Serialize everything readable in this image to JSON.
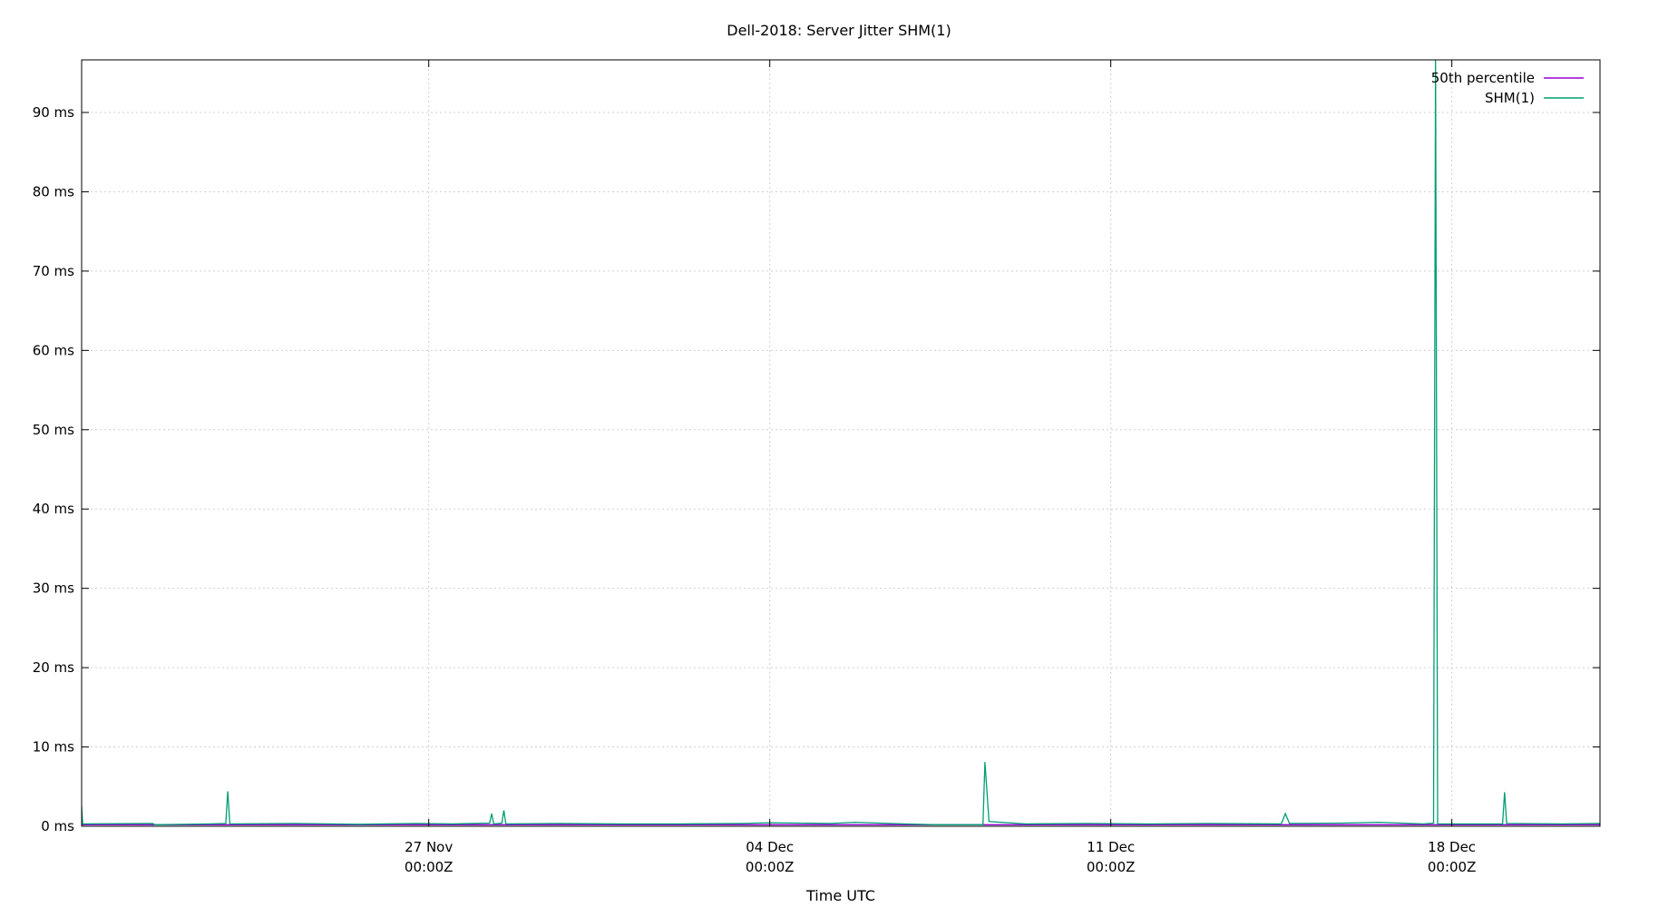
{
  "chart_data": {
    "type": "line",
    "title": "Dell-2018: Server Jitter SHM(1)",
    "xlabel": "Time UTC",
    "ylabel": "",
    "x_range": [
      "2018-11-19T21:00Z",
      "2018-12-21T01:00Z"
    ],
    "ylim": [
      0,
      90
    ],
    "y_ticks": [
      {
        "value": 0,
        "label": "0 ms"
      },
      {
        "value": 10,
        "label": "10 ms"
      },
      {
        "value": 20,
        "label": "20 ms"
      },
      {
        "value": 30,
        "label": "30 ms"
      },
      {
        "value": 40,
        "label": "40 ms"
      },
      {
        "value": 50,
        "label": "50 ms"
      },
      {
        "value": 60,
        "label": "60 ms"
      },
      {
        "value": 70,
        "label": "70 ms"
      },
      {
        "value": 80,
        "label": "80 ms"
      },
      {
        "value": 90,
        "label": "90 ms"
      }
    ],
    "x_ticks": [
      {
        "value": "2018-11-27T00:00Z",
        "line1": "27 Nov",
        "line2": "00:00Z"
      },
      {
        "value": "2018-12-04T00:00Z",
        "line1": "04 Dec",
        "line2": "00:00Z"
      },
      {
        "value": "2018-12-11T00:00Z",
        "line1": "11 Dec",
        "line2": "00:00Z"
      },
      {
        "value": "2018-12-18T00:00Z",
        "line1": "18 Dec",
        "line2": "00:00Z"
      }
    ],
    "grid": true,
    "legend_position": "top-right",
    "series": [
      {
        "name": "50th percentile",
        "color": "#9400d3",
        "points": [
          [
            "2018-11-19T21:00Z",
            0.2
          ],
          [
            "2018-12-21T01:00Z",
            0.2
          ]
        ]
      },
      {
        "name": "SHM(1)",
        "color": "#009e73",
        "points": [
          [
            "2018-11-19T21:00Z",
            2.5
          ],
          [
            "2018-11-19T21:30Z",
            0.3
          ],
          [
            "2018-11-21T08:00Z",
            0.35
          ],
          [
            "2018-11-21T09:00Z",
            0.2
          ],
          [
            "2018-11-22T12:00Z",
            0.3
          ],
          [
            "2018-11-22T20:00Z",
            0.35
          ],
          [
            "2018-11-22T21:00Z",
            4.4
          ],
          [
            "2018-11-22T22:00Z",
            0.3
          ],
          [
            "2018-11-24T06:00Z",
            0.35
          ],
          [
            "2018-11-25T14:00Z",
            0.25
          ],
          [
            "2018-11-26T18:00Z",
            0.35
          ],
          [
            "2018-11-27T12:00Z",
            0.3
          ],
          [
            "2018-11-28T06:00Z",
            0.4
          ],
          [
            "2018-11-28T07:00Z",
            1.6
          ],
          [
            "2018-11-28T08:00Z",
            0.3
          ],
          [
            "2018-11-28T12:00Z",
            0.4
          ],
          [
            "2018-11-28T13:00Z",
            2.0
          ],
          [
            "2018-11-28T14:00Z",
            0.3
          ],
          [
            "2018-11-29T16:00Z",
            0.35
          ],
          [
            "2018-11-30T22:00Z",
            0.3
          ],
          [
            "2018-12-02T04:00Z",
            0.3
          ],
          [
            "2018-12-03T10:00Z",
            0.35
          ],
          [
            "2018-12-04T00:00Z",
            0.45
          ],
          [
            "2018-12-05T06:00Z",
            0.35
          ],
          [
            "2018-12-05T18:00Z",
            0.5
          ],
          [
            "2018-12-06T18:00Z",
            0.3
          ],
          [
            "2018-12-07T10:00Z",
            0.2
          ],
          [
            "2018-12-08T09:00Z",
            0.2
          ],
          [
            "2018-12-08T10:00Z",
            8.1
          ],
          [
            "2018-12-08T12:00Z",
            0.6
          ],
          [
            "2018-12-09T06:00Z",
            0.3
          ],
          [
            "2018-12-10T12:00Z",
            0.35
          ],
          [
            "2018-12-11T18:00Z",
            0.3
          ],
          [
            "2018-12-13T00:00Z",
            0.35
          ],
          [
            "2018-12-14T12:00Z",
            0.3
          ],
          [
            "2018-12-14T14:00Z",
            1.6
          ],
          [
            "2018-12-14T16:00Z",
            0.35
          ],
          [
            "2018-12-15T18:00Z",
            0.4
          ],
          [
            "2018-12-16T12:00Z",
            0.5
          ],
          [
            "2018-12-17T10:00Z",
            0.3
          ],
          [
            "2018-12-17T15:00Z",
            0.4
          ],
          [
            "2018-12-17T16:00Z",
            97.0
          ],
          [
            "2018-12-17T17:00Z",
            0.3
          ],
          [
            "2018-12-19T01:00Z",
            0.3
          ],
          [
            "2018-12-19T02:00Z",
            4.3
          ],
          [
            "2018-12-19T03:00Z",
            0.35
          ],
          [
            "2018-12-20T06:00Z",
            0.3
          ],
          [
            "2018-12-21T01:00Z",
            0.35
          ]
        ]
      }
    ]
  }
}
